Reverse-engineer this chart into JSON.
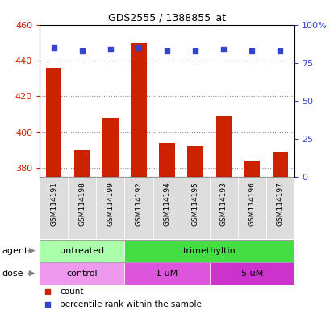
{
  "title": "GDS2555 / 1388855_at",
  "samples": [
    "GSM114191",
    "GSM114198",
    "GSM114199",
    "GSM114192",
    "GSM114194",
    "GSM114195",
    "GSM114193",
    "GSM114196",
    "GSM114197"
  ],
  "counts": [
    436,
    390,
    408,
    450,
    394,
    392,
    409,
    384,
    389
  ],
  "percentiles": [
    85,
    83,
    84,
    85,
    83,
    83,
    84,
    83,
    83
  ],
  "ymin": 375,
  "ymax": 460,
  "yticks": [
    380,
    400,
    420,
    440,
    460
  ],
  "y2min": 0,
  "y2max": 100,
  "y2ticks": [
    0,
    25,
    50,
    75,
    100
  ],
  "bar_color": "#cc2200",
  "dot_color": "#3344cc",
  "bar_width": 0.55,
  "agent_groups": [
    {
      "label": "untreated",
      "start": 0,
      "end": 3,
      "color": "#aaffaa"
    },
    {
      "label": "trimethyltin",
      "start": 3,
      "end": 9,
      "color": "#44dd44"
    }
  ],
  "dose_groups": [
    {
      "label": "control",
      "start": 0,
      "end": 3,
      "color": "#ee99ee"
    },
    {
      "label": "1 uM",
      "start": 3,
      "end": 6,
      "color": "#dd55dd"
    },
    {
      "label": "5 uM",
      "start": 6,
      "end": 9,
      "color": "#cc33cc"
    }
  ],
  "legend_count_color": "#cc2200",
  "legend_dot_color": "#3344cc",
  "grid_color": "#888888",
  "tick_label_color_left": "#cc2200",
  "tick_label_color_right": "#3344cc",
  "background_color": "#ffffff"
}
